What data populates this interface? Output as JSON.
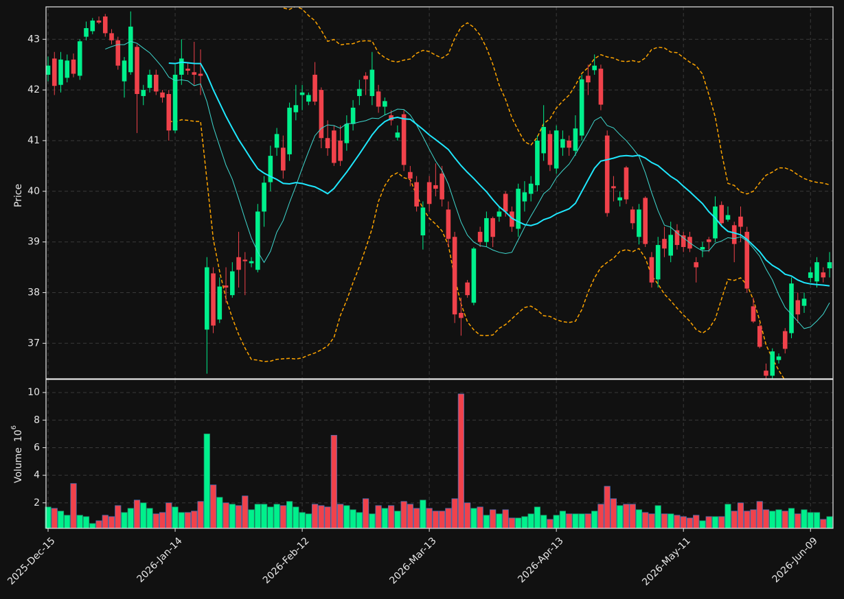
{
  "chart_data": {
    "type": "candlestick",
    "ylabel": "Price",
    "categories": [
      "2025-Dec-15",
      null,
      null,
      null,
      null,
      null,
      null,
      null,
      null,
      null,
      null,
      null,
      null,
      null,
      null,
      null,
      null,
      null,
      null,
      null,
      "2026-Jan-14",
      null,
      null,
      null,
      null,
      null,
      null,
      null,
      null,
      null,
      null,
      null,
      null,
      null,
      null,
      null,
      null,
      null,
      null,
      null,
      "2026-Feb-12",
      null,
      null,
      null,
      null,
      null,
      null,
      null,
      null,
      null,
      null,
      null,
      null,
      null,
      null,
      null,
      null,
      null,
      null,
      null,
      "2026-Mar-13",
      null,
      null,
      null,
      null,
      null,
      null,
      null,
      null,
      null,
      null,
      null,
      null,
      null,
      null,
      null,
      null,
      null,
      null,
      null,
      "2026-Apr-13",
      null,
      null,
      null,
      null,
      null,
      null,
      null,
      null,
      null,
      null,
      null,
      null,
      null,
      null,
      null,
      null,
      null,
      null,
      null,
      "2026-May-11",
      null,
      null,
      null,
      null,
      null,
      null,
      null,
      null,
      null,
      null,
      null,
      null,
      null,
      null,
      null,
      null,
      null,
      null,
      null,
      "2026-Jun-09",
      null,
      null,
      null
    ],
    "open": [
      42.3,
      42.62,
      42.1,
      42.24,
      42.6,
      42.28,
      43.05,
      43.16,
      43.37,
      43.45,
      43.12,
      42.98,
      42.17,
      42.35,
      42.85,
      41.88,
      42.04,
      42.3,
      41.95,
      41.92,
      41.2,
      42.3,
      42.42,
      42.35,
      42.32,
      37.27,
      38.38,
      37.47,
      38.14,
      37.95,
      38.7,
      38.65,
      38.58,
      38.45,
      39.6,
      40.18,
      40.86,
      40.86,
      40.73,
      41.56,
      41.9,
      41.77,
      42.3,
      42.0,
      41.05,
      41.2,
      41.0,
      40.95,
      41.33,
      41.88,
      42.28,
      41.88,
      41.97,
      41.67,
      41.5,
      41.06,
      41.52,
      40.38,
      40.18,
      39.13,
      40.18,
      40.12,
      40.35,
      39.64,
      39.1,
      37.6,
      38.2,
      37.8,
      39.2,
      39.0,
      39.47,
      39.5,
      39.95,
      39.6,
      39.26,
      39.8,
      39.95,
      40.12,
      40.75,
      41.13,
      40.45,
      40.86,
      41.0,
      40.8,
      41.1,
      42.28,
      42.39,
      42.42,
      41.1,
      40.1,
      39.82,
      40.47,
      39.64,
      39.1,
      39.87,
      38.7,
      38.26,
      39.06,
      38.73,
      39.23,
      39.13,
      39.1,
      38.6,
      38.85,
      39.05,
      39.07,
      39.73,
      39.44,
      39.33,
      39.5,
      39.2,
      37.73,
      37.34,
      36.46,
      36.36,
      36.67,
      37.24,
      37.2,
      37.85,
      37.74,
      38.29,
      38.22,
      38.4,
      38.48
    ],
    "high": [
      42.66,
      42.75,
      42.75,
      42.7,
      42.72,
      43.0,
      43.35,
      43.42,
      43.45,
      43.5,
      43.2,
      43.05,
      42.65,
      43.55,
      42.9,
      42.1,
      42.4,
      42.4,
      42.0,
      42.0,
      42.5,
      43.0,
      42.55,
      42.95,
      42.8,
      38.7,
      38.5,
      38.3,
      38.5,
      38.6,
      39.2,
      38.8,
      38.7,
      39.75,
      40.3,
      40.9,
      41.25,
      41.1,
      41.75,
      42.1,
      42.1,
      41.95,
      42.55,
      42.05,
      41.4,
      41.3,
      41.3,
      41.5,
      41.8,
      42.2,
      42.35,
      42.75,
      42.1,
      41.85,
      41.6,
      41.3,
      41.6,
      40.5,
      40.3,
      39.8,
      40.3,
      40.55,
      40.5,
      39.8,
      39.2,
      37.9,
      38.25,
      38.9,
      39.3,
      39.6,
      39.5,
      39.7,
      40.0,
      39.7,
      40.15,
      40.2,
      40.3,
      41.1,
      41.7,
      41.2,
      41.3,
      41.2,
      41.1,
      41.5,
      42.3,
      42.5,
      42.7,
      42.5,
      41.2,
      40.3,
      40.0,
      40.5,
      39.7,
      39.75,
      39.9,
      38.8,
      39.1,
      39.3,
      39.4,
      39.35,
      39.2,
      39.2,
      38.7,
      39.0,
      39.1,
      39.9,
      39.8,
      39.7,
      39.4,
      39.7,
      39.3,
      37.9,
      37.4,
      36.6,
      36.9,
      36.8,
      37.3,
      38.3,
      38.0,
      38.0,
      38.5,
      38.7,
      38.5,
      38.8
    ],
    "low": [
      42.17,
      41.9,
      41.95,
      42.15,
      42.25,
      42.2,
      42.98,
      43.1,
      43.3,
      43.05,
      42.9,
      42.4,
      41.85,
      42.3,
      41.15,
      41.7,
      41.95,
      41.9,
      41.75,
      41.0,
      41.15,
      42.1,
      42.3,
      42.1,
      41.9,
      36.4,
      37.2,
      37.4,
      37.8,
      37.9,
      38.1,
      37.95,
      38.5,
      38.4,
      39.3,
      40.0,
      40.7,
      40.25,
      40.6,
      41.4,
      41.6,
      41.7,
      41.7,
      40.85,
      40.7,
      40.5,
      40.5,
      40.8,
      41.2,
      41.7,
      41.9,
      41.7,
      41.55,
      41.5,
      41.3,
      41.0,
      40.4,
      40.1,
      39.6,
      38.85,
      39.6,
      39.9,
      39.7,
      38.9,
      37.4,
      37.15,
      37.9,
      37.75,
      38.9,
      38.9,
      38.9,
      39.4,
      39.5,
      39.2,
      39.1,
      39.6,
      39.8,
      40.0,
      40.6,
      40.4,
      40.35,
      40.7,
      40.7,
      40.7,
      41.0,
      41.9,
      42.3,
      41.6,
      39.5,
      39.8,
      39.7,
      39.75,
      39.25,
      38.95,
      38.9,
      38.1,
      38.1,
      38.7,
      38.6,
      38.85,
      38.8,
      38.8,
      38.2,
      38.7,
      38.8,
      39.0,
      39.3,
      39.4,
      38.6,
      39.0,
      38.0,
      37.4,
      36.9,
      36.3,
      36.3,
      36.6,
      36.8,
      37.1,
      37.4,
      37.6,
      38.2,
      38.1,
      38.2,
      38.3
    ],
    "close": [
      42.48,
      42.08,
      42.6,
      42.58,
      42.32,
      42.96,
      43.22,
      43.37,
      43.33,
      43.12,
      42.98,
      42.48,
      42.58,
      43.25,
      41.92,
      42.0,
      42.3,
      41.97,
      41.85,
      41.2,
      42.3,
      42.62,
      42.38,
      42.3,
      42.28,
      38.5,
      37.35,
      38.12,
      38.1,
      38.42,
      38.45,
      38.62,
      38.62,
      39.6,
      40.17,
      40.7,
      41.13,
      40.41,
      41.65,
      41.7,
      41.95,
      41.9,
      41.77,
      41.05,
      40.85,
      40.56,
      40.6,
      41.33,
      41.65,
      42.02,
      42.21,
      42.4,
      41.67,
      41.78,
      41.4,
      41.16,
      40.52,
      40.25,
      39.7,
      39.68,
      39.75,
      40.05,
      39.84,
      39.06,
      37.57,
      37.5,
      37.95,
      38.87,
      39.0,
      39.47,
      39.1,
      39.6,
      39.6,
      39.3,
      40.05,
      39.98,
      40.15,
      41.0,
      41.27,
      40.52,
      41.2,
      41.03,
      40.86,
      41.24,
      42.21,
      42.15,
      42.48,
      41.71,
      39.57,
      40.06,
      39.88,
      39.84,
      39.37,
      39.64,
      38.96,
      38.2,
      38.94,
      38.87,
      39.14,
      38.94,
      38.9,
      38.87,
      38.5,
      38.9,
      39.0,
      39.7,
      39.37,
      39.53,
      38.96,
      39.3,
      38.08,
      37.43,
      36.93,
      36.36,
      36.84,
      36.74,
      36.89,
      38.18,
      37.57,
      37.88,
      38.4,
      38.6,
      38.3,
      38.6
    ],
    "up_color": "#00f08c",
    "down_color": "#f0424b",
    "ylim": [
      36.3,
      43.64
    ],
    "yticks": [
      37,
      38,
      39,
      40,
      41,
      42,
      43
    ],
    "grid": true,
    "moving_averages": [
      {
        "window": 10,
        "color": "#3fd9d0"
      },
      {
        "window": 20,
        "color": "#1fe8ff"
      }
    ],
    "bands": {
      "window": 20,
      "std": 2,
      "color": "#ffa500"
    },
    "volume": {
      "ylabel": "Volume",
      "unit_base": "10",
      "unit_exponent": "6",
      "values": [
        1.7,
        1.6,
        1.4,
        1.1,
        3.4,
        1.1,
        1.0,
        0.5,
        0.7,
        1.1,
        1.0,
        1.8,
        1.3,
        1.6,
        2.2,
        2.0,
        1.6,
        1.2,
        1.3,
        2.0,
        1.7,
        1.3,
        1.3,
        1.4,
        2.1,
        7.0,
        3.3,
        2.4,
        2.0,
        1.9,
        1.8,
        2.5,
        1.5,
        1.9,
        1.9,
        1.7,
        1.9,
        1.8,
        2.1,
        1.7,
        1.3,
        1.2,
        1.9,
        1.8,
        1.7,
        6.9,
        1.9,
        1.8,
        1.5,
        1.3,
        2.3,
        1.2,
        1.8,
        1.6,
        1.8,
        1.4,
        2.1,
        1.9,
        1.6,
        2.2,
        1.6,
        1.4,
        1.4,
        1.6,
        2.3,
        9.9,
        2.0,
        1.6,
        1.7,
        1.1,
        1.5,
        1.2,
        1.5,
        0.9,
        0.9,
        1.0,
        1.2,
        1.7,
        1.1,
        0.8,
        1.1,
        1.4,
        1.2,
        1.2,
        1.2,
        1.2,
        1.4,
        1.9,
        3.2,
        2.3,
        1.8,
        1.9,
        1.9,
        1.5,
        1.3,
        1.2,
        1.8,
        1.2,
        1.2,
        1.1,
        1.0,
        0.9,
        1.1,
        0.7,
        1.0,
        1.0,
        1.0,
        1.9,
        1.4,
        2.0,
        1.4,
        1.5,
        2.1,
        1.5,
        1.4,
        1.5,
        1.4,
        1.6,
        1.2,
        1.5,
        1.3,
        1.3,
        0.8,
        1.0
      ],
      "ylim": [
        0.15,
        10.95
      ],
      "yticks": [
        2,
        4,
        6,
        8,
        10
      ]
    }
  }
}
